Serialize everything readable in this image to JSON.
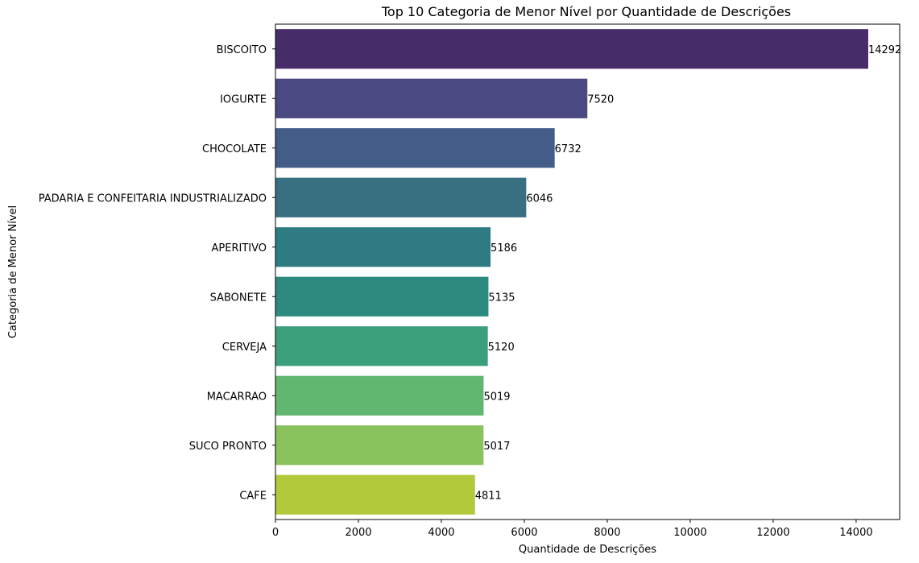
{
  "chart_data": {
    "type": "bar",
    "orientation": "horizontal",
    "title": "Top 10 Categoria de Menor Nível por Quantidade de Descrições",
    "xlabel": "Quantidade de Descrições",
    "ylabel": "Categoria de Menor Nível",
    "categories": [
      "BISCOITO",
      "IOGURTE",
      "CHOCOLATE",
      "PADARIA E CONFEITARIA INDUSTRIALIZADO",
      "APERITIVO",
      "SABONETE",
      "CERVEJA",
      "MACARRAO",
      "SUCO PRONTO",
      "CAFE"
    ],
    "values": [
      14292,
      7520,
      6732,
      6046,
      5186,
      5135,
      5120,
      5019,
      5017,
      4811
    ],
    "data_labels": [
      "14292",
      "7520",
      "6732",
      "6046",
      "5186",
      "5135",
      "5120",
      "5019",
      "5017",
      "4811"
    ],
    "xlim": [
      0,
      15050
    ],
    "xticks": [
      0,
      2000,
      4000,
      6000,
      8000,
      10000,
      12000,
      14000
    ],
    "xtick_labels": [
      "0",
      "2000",
      "4000",
      "6000",
      "8000",
      "10000",
      "12000",
      "14000"
    ],
    "grid": false,
    "legend": "none",
    "colormap": "viridis",
    "colors": [
      "#472c6a",
      "#4a4982",
      "#425d88",
      "#386f81",
      "#2e7c81",
      "#2c8a7f",
      "#3a9f7a",
      "#61b670",
      "#8ac35d",
      "#b2c93b"
    ]
  }
}
